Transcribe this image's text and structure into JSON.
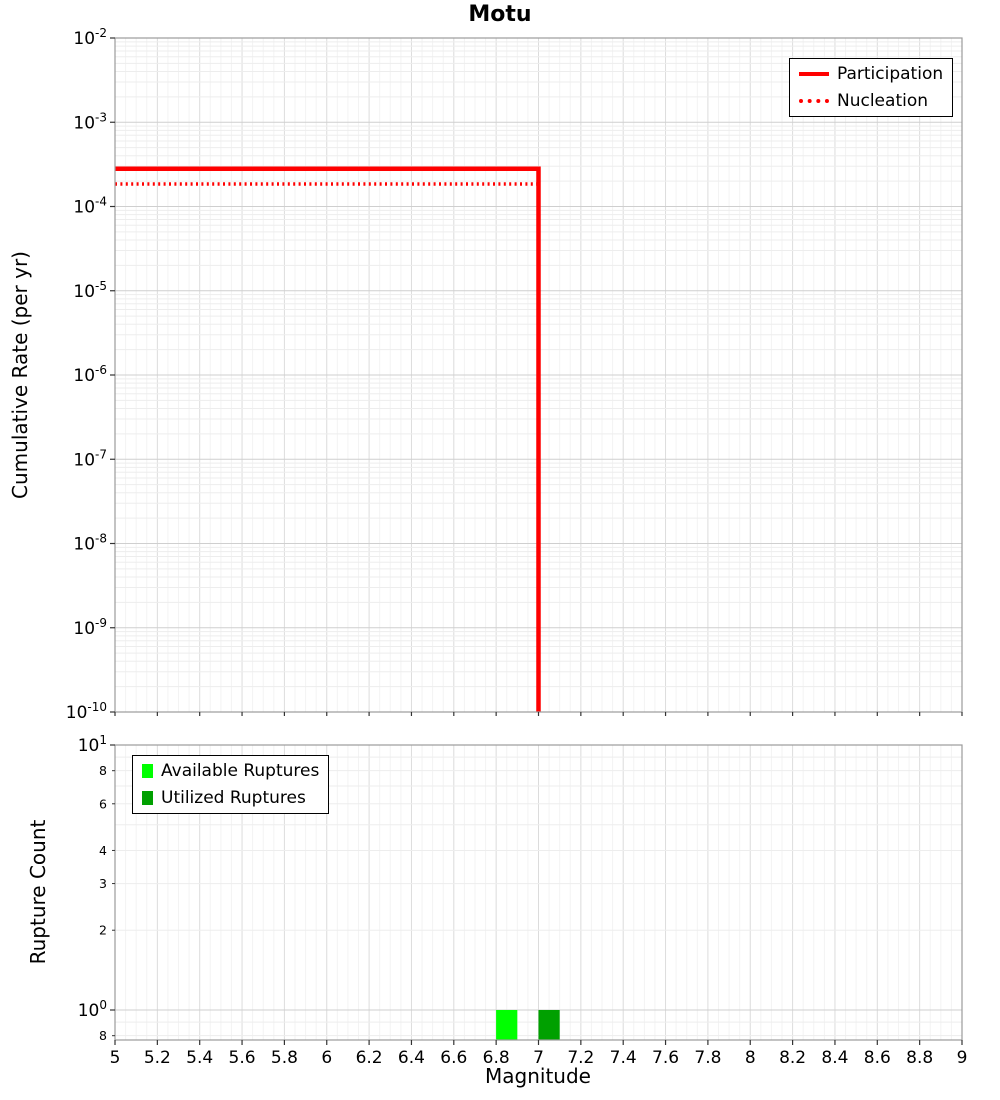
{
  "title": "Motu",
  "xlabel": "Magnitude",
  "top_panel": {
    "ylabel": "Cumulative Rate (per yr)",
    "legend": [
      {
        "label": "Participation",
        "style": "solid",
        "color": "#ff0000"
      },
      {
        "label": "Nucleation",
        "style": "dotted",
        "color": "#ff0000"
      }
    ]
  },
  "bottom_panel": {
    "ylabel": "Rupture Count",
    "legend": [
      {
        "label": "Available Ruptures",
        "color": "#00ff00"
      },
      {
        "label": "Utilized Ruptures",
        "color": "#00a000"
      }
    ]
  },
  "xticks": [
    {
      "value": 5,
      "label": "5"
    },
    {
      "value": 5.2,
      "label": "5.2"
    },
    {
      "value": 5.4,
      "label": "5.4"
    },
    {
      "value": 5.6,
      "label": "5.6"
    },
    {
      "value": 5.8,
      "label": "5.8"
    },
    {
      "value": 6,
      "label": "6"
    },
    {
      "value": 6.2,
      "label": "6.2"
    },
    {
      "value": 6.4,
      "label": "6.4"
    },
    {
      "value": 6.6,
      "label": "6.6"
    },
    {
      "value": 6.8,
      "label": "6.8"
    },
    {
      "value": 7,
      "label": "7"
    },
    {
      "value": 7.2,
      "label": "7.2"
    },
    {
      "value": 7.4,
      "label": "7.4"
    },
    {
      "value": 7.6,
      "label": "7.6"
    },
    {
      "value": 7.8,
      "label": "7.8"
    },
    {
      "value": 8,
      "label": "8"
    },
    {
      "value": 8.2,
      "label": "8.2"
    },
    {
      "value": 8.4,
      "label": "8.4"
    },
    {
      "value": 8.6,
      "label": "8.6"
    },
    {
      "value": 8.8,
      "label": "8.8"
    },
    {
      "value": 9,
      "label": "9"
    }
  ],
  "chart_data": [
    {
      "type": "line",
      "title": "Motu",
      "xlabel": "Magnitude",
      "ylabel": "Cumulative Rate (per yr)",
      "xlim": [
        5,
        9
      ],
      "ylim": [
        1e-10,
        0.01
      ],
      "yscale": "log",
      "grid": true,
      "legend_position": "top-right",
      "yticks_exponents": [
        -2,
        -3,
        -4,
        -5,
        -6,
        -7,
        -8,
        -9,
        -10
      ],
      "series": [
        {
          "name": "Participation",
          "color": "#ff0000",
          "style": "solid",
          "width": 4.5,
          "points": [
            [
              5,
              0.00028
            ],
            [
              7.0,
              0.00028
            ],
            [
              7.0,
              1e-10
            ]
          ]
        },
        {
          "name": "Nucleation",
          "color": "#ff0000",
          "style": "dotted",
          "width": 3.5,
          "points": [
            [
              5,
              0.000185
            ],
            [
              7.0,
              0.000185
            ],
            [
              7.0,
              1e-10
            ]
          ]
        }
      ]
    },
    {
      "type": "bar",
      "xlabel": "Magnitude",
      "ylabel": "Rupture Count",
      "xlim": [
        5,
        9
      ],
      "ylim": [
        0.77,
        10
      ],
      "yscale": "log",
      "grid": true,
      "legend_position": "top-left",
      "bar_width": 0.1,
      "bars": [
        {
          "series": "Available Ruptures",
          "x": 6.85,
          "count": 1,
          "color": "#00ff00"
        },
        {
          "series": "Utilized Ruptures",
          "x": 7.05,
          "count": 1,
          "color": "#00a000"
        }
      ],
      "ytick_major": [
        {
          "value": 10,
          "exp": "1"
        },
        {
          "value": 1,
          "exp": "0"
        }
      ],
      "ytick_minor_labeled": [
        {
          "value": 8,
          "label": "8"
        },
        {
          "value": 6,
          "label": "6"
        },
        {
          "value": 4,
          "label": "4"
        },
        {
          "value": 3,
          "label": "3"
        },
        {
          "value": 2,
          "label": "2"
        },
        {
          "value": 0.8,
          "label": "8"
        }
      ]
    }
  ]
}
